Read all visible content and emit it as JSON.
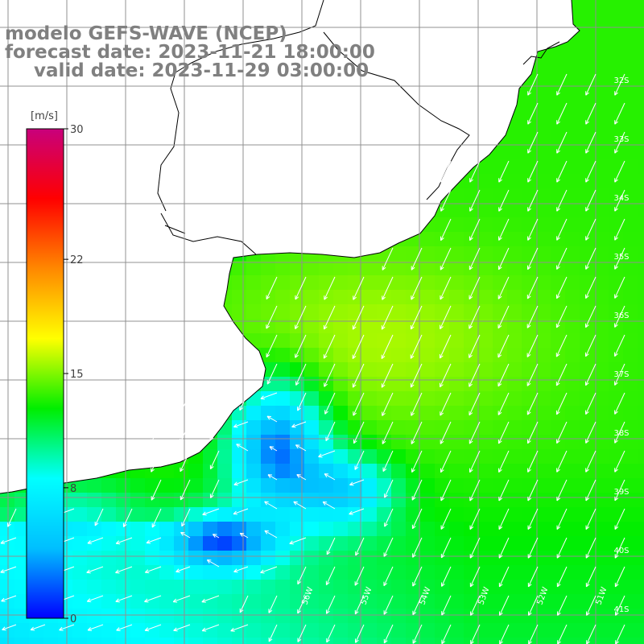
{
  "header": {
    "model": "modelo GEFS-WAVE (NCEP)",
    "forecast": "forecast date: 2023-11-21 18:00:00",
    "valid": "valid date: 2023-11-29 03:00:00"
  },
  "colorbar": {
    "unit": "[m/s]",
    "min": 0,
    "max": 30,
    "ticks": [
      {
        "value": 0,
        "label": "0"
      },
      {
        "value": 8,
        "label": "8"
      },
      {
        "value": 15,
        "label": "15"
      },
      {
        "value": 22,
        "label": "22"
      },
      {
        "value": 30,
        "label": "30"
      }
    ],
    "colors": [
      "#0000ff",
      "#00bfff",
      "#00ffff",
      "#00ee00",
      "#ffff00",
      "#ff8800",
      "#ff0000",
      "#c8007c"
    ]
  },
  "map": {
    "lon_labels": [
      "56W",
      "55W",
      "54W",
      "53W",
      "52W",
      "51W"
    ],
    "lat_labels": [
      "32S",
      "33S",
      "34S",
      "35S",
      "36S",
      "37S",
      "38S",
      "39S",
      "40S",
      "41S"
    ],
    "land_color": "#ffffff",
    "grid_color": "#909090",
    "vector_color": "#ffffff"
  }
}
